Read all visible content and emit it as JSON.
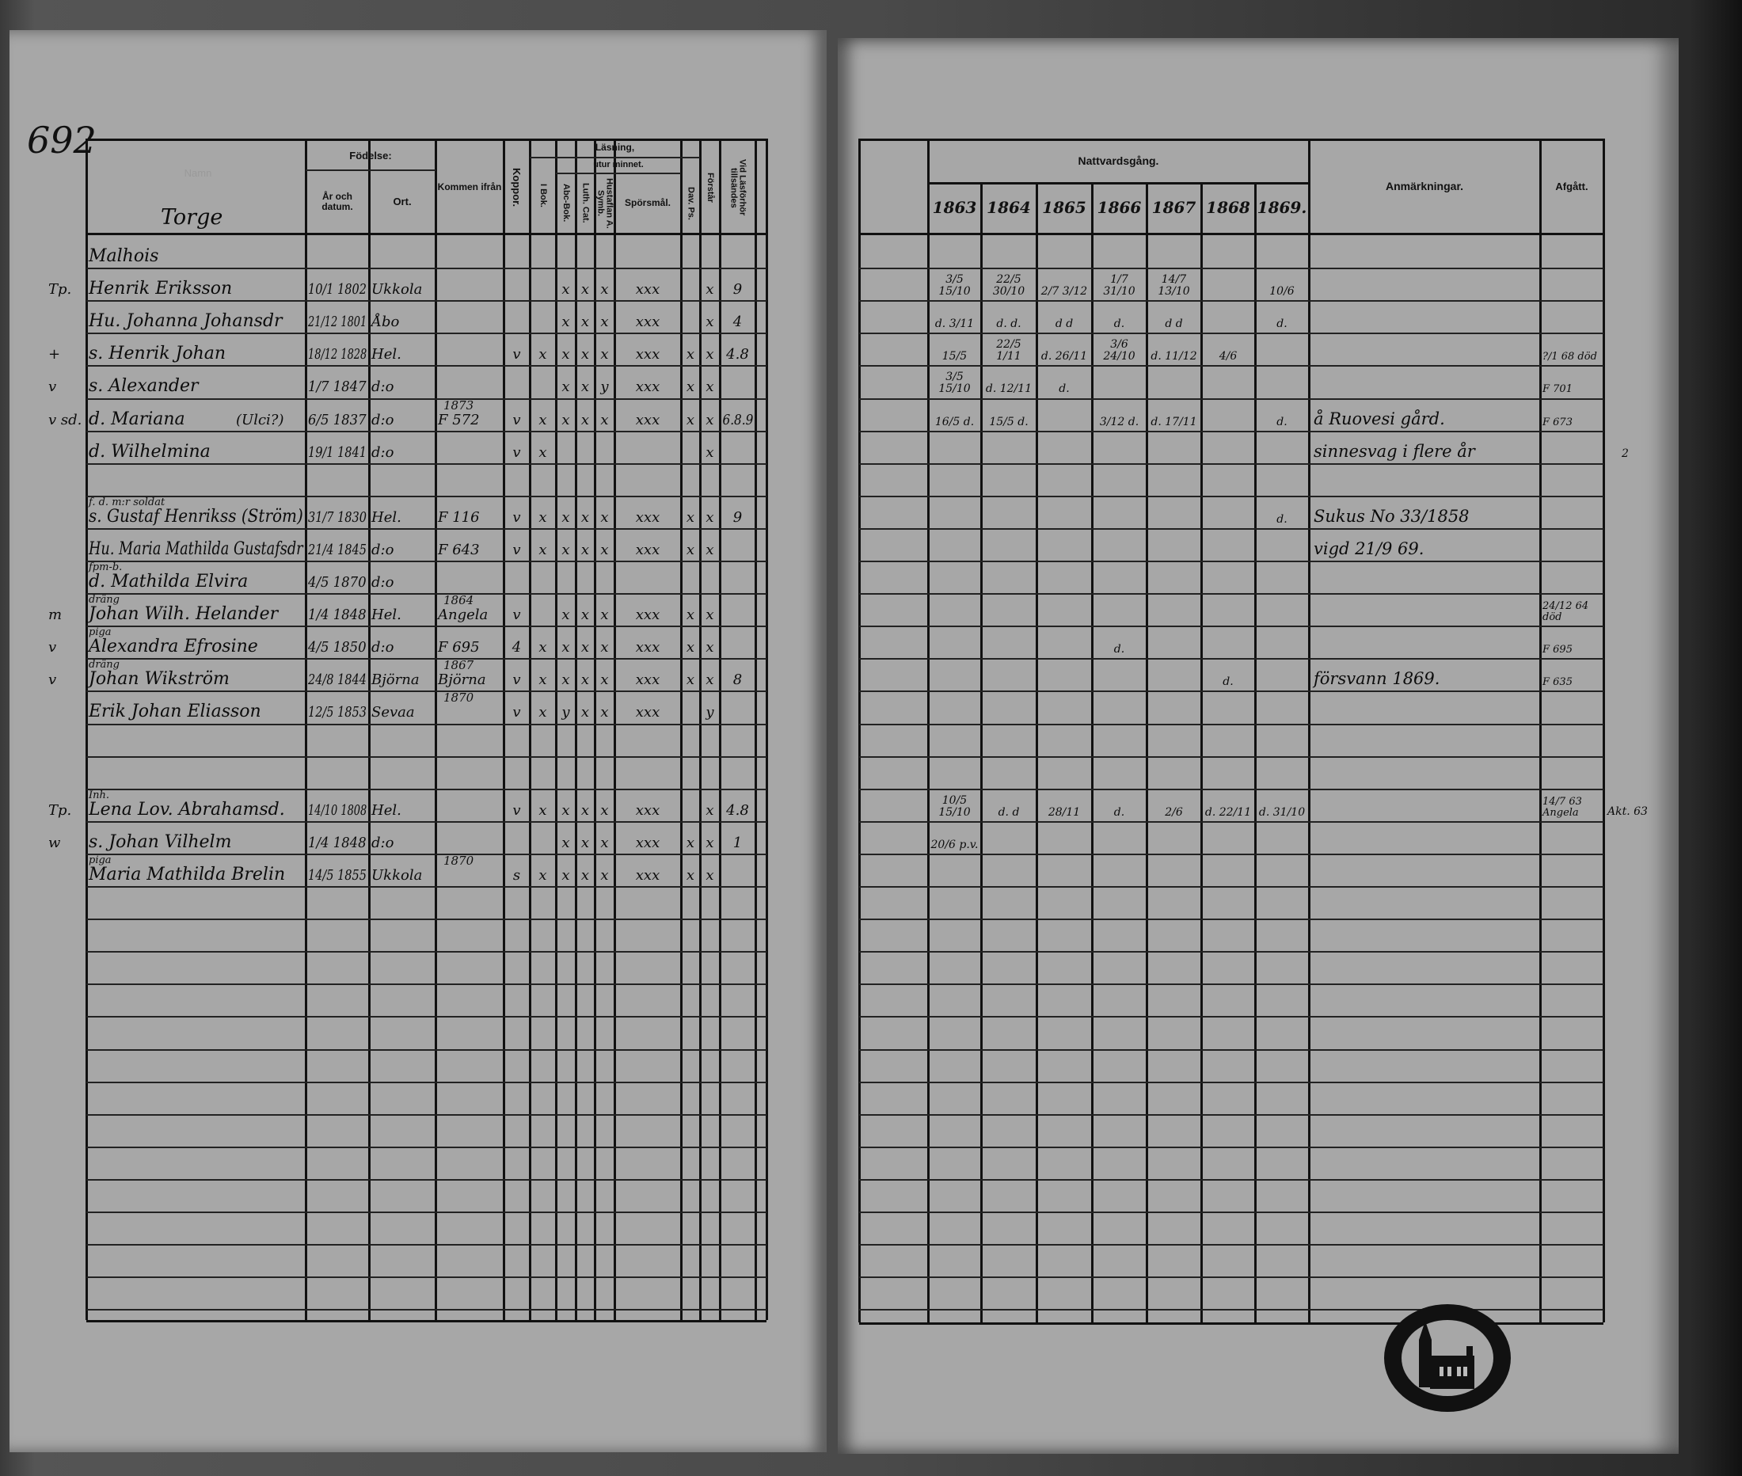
{
  "page_number": "692",
  "left_page": {
    "headers": {
      "name_faded": "Namn",
      "fodelse": "Födelse:",
      "ar": "År och datum.",
      "ort": "Ort.",
      "kommen": "Kommen ifrån",
      "koppor": "Koppor.",
      "lasning": "Läsning,",
      "utur_minnet": "utur minnet.",
      "ibok": "I Bok.",
      "abc": "Abc-Bok.",
      "luth": "Luth. Cat.",
      "hust": "Hustaflan A. Symb.",
      "spors": "Spörsmål.",
      "dav": "Dav. Ps.",
      "forst": "Förstår",
      "vid": "Vid Läsförhör tillsändes"
    },
    "village": "Torge",
    "rows": [
      {
        "name": "Malhois"
      },
      {
        "margin": "Tp.",
        "name": "Henrik Eriksson",
        "year": "10/1 1802",
        "place": "Ukkola",
        "abc": "x",
        "luth": "x",
        "hust": "x",
        "spors": "xxx",
        "forst": "x",
        "vid": "9"
      },
      {
        "name": "Hu. Johanna Johansdr",
        "year": "21/12 1801",
        "place": "Åbo",
        "abc": "x",
        "luth": "x",
        "hust": "x",
        "spors": "xxx",
        "forst": "x",
        "vid": "4"
      },
      {
        "margin": "+",
        "name": "s. Henrik Johan",
        "year": "18/12 1828",
        "place": "Hel.",
        "koppor": "v",
        "ibok": "x",
        "abc": "x",
        "luth": "x",
        "hust": "x",
        "spors": "xxx",
        "dav": "x",
        "forst": "x",
        "vid": "4.8"
      },
      {
        "margin": "v",
        "name": "s. Alexander",
        "year": "1/7 1847",
        "place": "d:o",
        "abc": "x",
        "luth": "x",
        "hust": "y",
        "spors": "xxx",
        "dav": "x",
        "forst": "x"
      },
      {
        "margin": "v sd.",
        "name": "d. Mariana",
        "note": "(Ulci?)",
        "year": "6/5 1837",
        "place": "d:o",
        "from_top": "1873",
        "from": "F 572",
        "koppor": "v",
        "ibok": "x",
        "abc": "x",
        "luth": "x",
        "hust": "x",
        "spors": "xxx",
        "dav": "x",
        "forst": "x",
        "vid": "6.8.9"
      },
      {
        "name": "d. Wilhelmina",
        "year": "19/1 1841",
        "place": "d:o",
        "koppor": "v",
        "ibok": "x",
        "forst": "x"
      },
      {},
      {
        "sub": "f. d. m:r soldat",
        "name": "s. Gustaf Henrikss (Ström)",
        "year": "31/7 1830",
        "place": "Hel.",
        "from": "F 116",
        "koppor": "v",
        "ibok": "x",
        "abc": "x",
        "luth": "x",
        "hust": "x",
        "spors": "xxx",
        "dav": "x",
        "forst": "x",
        "vid": "9"
      },
      {
        "name": "Hu. Maria Mathilda Gustafsdr",
        "year": "21/4 1845",
        "place": "d:o",
        "from": "F 643",
        "koppor": "v",
        "ibok": "x",
        "abc": "x",
        "luth": "x",
        "hust": "x",
        "spors": "xxx",
        "dav": "x",
        "forst": "x"
      },
      {
        "sub": "fpm-b.",
        "name": "d. Mathilda Elvira",
        "year": "4/5 1870",
        "place": "d:o"
      },
      {
        "margin": "m",
        "sub": "dräng",
        "name": "Johan Wilh. Helander",
        "year": "1/4 1848",
        "place": "Hel.",
        "from_top": "1864",
        "from": "Angela",
        "koppor": "v",
        "abc": "x",
        "luth": "x",
        "hust": "x",
        "spors": "xxx",
        "dav": "x",
        "forst": "x"
      },
      {
        "margin": "v",
        "sub": "piga",
        "name": "Alexandra Efrosine",
        "year": "4/5 1850",
        "place": "d:o",
        "from": "F 695",
        "koppor": "4",
        "ibok": "x",
        "abc": "x",
        "luth": "x",
        "hust": "x",
        "spors": "xxx",
        "dav": "x",
        "forst": "x"
      },
      {
        "margin": "v",
        "sub": "dräng",
        "name": "Johan Wikström",
        "year": "24/8 1844",
        "place": "Björna",
        "from_top": "1867",
        "from": "Björna",
        "koppor": "v",
        "ibok": "x",
        "abc": "x",
        "luth": "x",
        "hust": "x",
        "spors": "xxx",
        "dav": "x",
        "forst": "x",
        "vid": "8"
      },
      {
        "name": "Erik Johan Eliasson",
        "year": "12/5 1853",
        "place": "Sevaa",
        "from_top": "1870",
        "koppor": "v",
        "ibok": "x",
        "abc": "y",
        "luth": "x",
        "hust": "x",
        "spors": "xxx",
        "forst": "y"
      },
      {},
      {},
      {
        "margin": "Tp.",
        "sub": "Inh.",
        "name": "Lena Lov. Abrahamsd.",
        "year": "14/10 1808",
        "place": "Hel.",
        "koppor": "v",
        "ibok": "x",
        "abc": "x",
        "luth": "x",
        "hust": "x",
        "spors": "xxx",
        "forst": "x",
        "vid": "4.8"
      },
      {
        "margin": "w",
        "name": "s. Johan Vilhelm",
        "year": "1/4 1848",
        "place": "d:o",
        "abc": "x",
        "luth": "x",
        "hust": "x",
        "spors": "xxx",
        "dav": "x",
        "forst": "x",
        "vid": "1"
      },
      {
        "sub": "piga",
        "name": "Maria Mathilda Brelin",
        "year": "14/5 1855",
        "place": "Ukkola",
        "from_top": "1870",
        "koppor": "s",
        "ibok": "x",
        "abc": "x",
        "luth": "x",
        "hust": "x",
        "spors": "xxx",
        "dav": "x",
        "forst": "x"
      }
    ]
  },
  "right_page": {
    "headers": {
      "nattvardsgang": "Nattvardsgång.",
      "years": [
        "1863",
        "1864",
        "1865",
        "1866",
        "1867",
        "1868",
        "1869."
      ],
      "anmarkningar": "Anmärkningar.",
      "afgatt": "Afgått."
    },
    "rows": [
      {},
      {
        "c": [
          "3/5 15/10",
          "22/5 30/10",
          "2/7 3/12",
          "1/7 31/10",
          "14/7 13/10",
          "",
          "10/6"
        ]
      },
      {
        "c": [
          "d. 3/11",
          "d. d.",
          "d d",
          "d.",
          "d d",
          "",
          "d."
        ]
      },
      {
        "c": [
          "15/5",
          "22/5 1/11",
          "d. 26/11",
          "3/6 24/10",
          "d. 11/12",
          "4/6",
          ""
        ],
        "afgatt": "?/1 68 död"
      },
      {
        "c": [
          "3/5 15/10",
          "d. 12/11",
          "d.",
          "",
          "",
          "",
          ""
        ],
        "afgatt": "F 701"
      },
      {
        "c": [
          "16/5 d.",
          "15/5 d.",
          "",
          "3/12 d.",
          "d. 17/11",
          "",
          "d."
        ],
        "remark": "å Ruovesi gård.",
        "afgatt": "F 673"
      },
      {
        "remark": "sinnesvag i flere år",
        "outside": "2"
      },
      {},
      {
        "c": [
          "",
          "",
          "",
          "",
          "",
          "",
          "d."
        ],
        "remark": "Sukus No 33/1858"
      },
      {
        "remark": "vigd 21/9 69."
      },
      {},
      {
        "afgatt": "24/12 64 död"
      },
      {
        "c": [
          "",
          "",
          "",
          "d.",
          "",
          "",
          ""
        ],
        "afgatt": "F 695"
      },
      {
        "c": [
          "",
          "",
          "",
          "",
          "",
          "d.",
          ""
        ],
        "remark": "försvann 1869.",
        "afgatt": "F 635"
      },
      {},
      {},
      {},
      {
        "c": [
          "10/5 15/10",
          "d. d",
          "28/11",
          "d.",
          "2/6",
          "d. 22/11",
          "d. 31/10"
        ],
        "afgatt": "14/7 63 Angela",
        "extra": "Akt. 63"
      },
      {
        "c": [
          "20/6 p.v.",
          "",
          "",
          "",
          "",
          "",
          ""
        ]
      }
    ]
  },
  "stamp": {
    "alt": "parish seal with church"
  },
  "colors": {
    "paper": "#a7a7a7",
    "ink": "#111111",
    "background": "#2a2a2a"
  }
}
